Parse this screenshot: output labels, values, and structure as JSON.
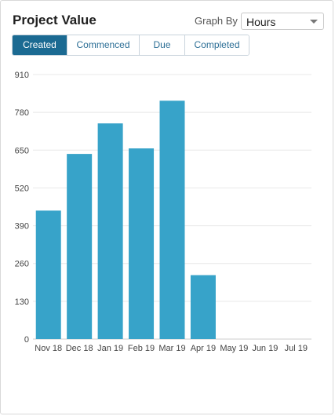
{
  "header": {
    "title": "Project Value",
    "graph_by_label": "Graph By",
    "graph_by_value": "Hours"
  },
  "tabs": [
    {
      "label": "Created",
      "active": true
    },
    {
      "label": "Commenced",
      "active": false
    },
    {
      "label": "Due",
      "active": false
    },
    {
      "label": "Completed",
      "active": false
    }
  ],
  "icons": {
    "select_caret": "caret-down-icon"
  },
  "colors": {
    "bar": "#37a3c9",
    "tab_active": "#1b6a92",
    "tab_text": "#2d6f96"
  },
  "chart_data": {
    "type": "bar",
    "title": "",
    "xlabel": "",
    "ylabel": "",
    "categories": [
      "Nov 18",
      "Dec 18",
      "Jan 19",
      "Feb 19",
      "Mar 19",
      "Apr 19",
      "May 19",
      "Jun 19",
      "Jul 19"
    ],
    "values": [
      442,
      637,
      742,
      656,
      820,
      220,
      0,
      0,
      0
    ],
    "ylim": [
      0,
      910
    ],
    "yticks": [
      0,
      130,
      260,
      390,
      520,
      650,
      780,
      910
    ],
    "grid": true,
    "legend": "none"
  }
}
